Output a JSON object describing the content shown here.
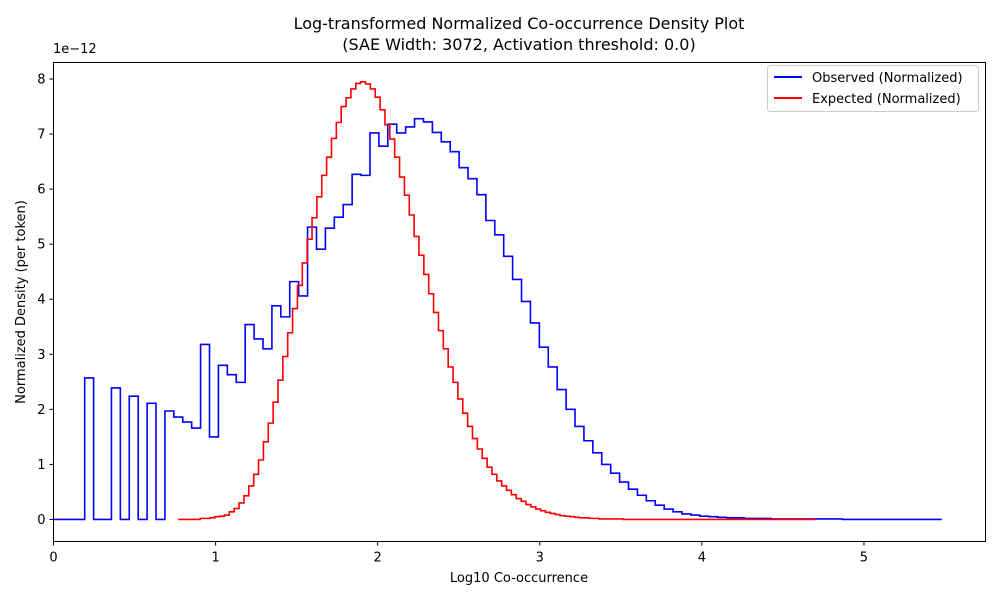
{
  "chart_data": {
    "type": "line",
    "title": "Log-transformed Normalized Co-occurrence Density Plot",
    "subtitle": "(SAE Width: 3072, Activation threshold: 0.0)",
    "xlabel": "Log10 Co-occurrence",
    "ylabel": "Normalized Density (per token)",
    "y_multiplier": "1e−12",
    "xlim": [
      0,
      5.75
    ],
    "ylim": [
      -0.4,
      8.3
    ],
    "x_ticks": [
      0,
      1,
      2,
      3,
      4,
      5
    ],
    "x_tick_labels": [
      "0",
      "1",
      "2",
      "3",
      "4",
      "5"
    ],
    "y_ticks": [
      0,
      1,
      2,
      3,
      4,
      5,
      6,
      7,
      8
    ],
    "y_tick_labels": [
      "0",
      "1",
      "2",
      "3",
      "4",
      "5",
      "6",
      "7",
      "8"
    ],
    "grid": false,
    "legend_position": "top-right",
    "series": [
      {
        "name": "Observed (Normalized)",
        "color": "#0000ff",
        "step": "mid",
        "x": [
          0.0,
          0.055,
          0.11,
          0.165,
          0.22,
          0.275,
          0.33,
          0.385,
          0.44,
          0.495,
          0.55,
          0.605,
          0.66,
          0.715,
          0.77,
          0.825,
          0.88,
          0.935,
          0.99,
          1.045,
          1.1,
          1.155,
          1.21,
          1.265,
          1.32,
          1.375,
          1.43,
          1.485,
          1.54,
          1.595,
          1.65,
          1.705,
          1.76,
          1.815,
          1.87,
          1.925,
          1.98,
          2.035,
          2.09,
          2.145,
          2.2,
          2.255,
          2.31,
          2.365,
          2.42,
          2.475,
          2.53,
          2.585,
          2.64,
          2.695,
          2.75,
          2.805,
          2.86,
          2.915,
          2.97,
          3.025,
          3.08,
          3.135,
          3.19,
          3.245,
          3.3,
          3.355,
          3.41,
          3.465,
          3.52,
          3.575,
          3.63,
          3.685,
          3.74,
          3.795,
          3.85,
          3.905,
          3.96,
          4.015,
          4.07,
          4.125,
          4.18,
          4.235,
          4.29,
          4.345,
          4.4,
          4.455,
          4.51,
          4.565,
          4.62,
          4.675,
          4.73,
          4.785,
          4.84,
          4.895,
          4.95,
          5.005,
          5.06,
          5.115,
          5.17,
          5.225,
          5.28,
          5.335,
          5.39,
          5.445,
          5.48
        ],
        "values": [
          0,
          0,
          0,
          0,
          2.57,
          0,
          0,
          2.39,
          0,
          2.24,
          0,
          2.11,
          0,
          1.97,
          1.86,
          1.77,
          1.66,
          3.18,
          1.5,
          2.8,
          2.63,
          2.49,
          3.54,
          3.28,
          3.1,
          3.88,
          3.68,
          4.32,
          4.06,
          5.31,
          4.91,
          5.29,
          5.49,
          5.72,
          6.27,
          6.25,
          7.02,
          6.78,
          7.18,
          7.02,
          7.13,
          7.28,
          7.22,
          7.03,
          6.86,
          6.68,
          6.39,
          6.19,
          5.9,
          5.43,
          5.17,
          4.78,
          4.36,
          3.96,
          3.57,
          3.13,
          2.77,
          2.36,
          2.0,
          1.69,
          1.43,
          1.21,
          1.0,
          0.84,
          0.68,
          0.55,
          0.44,
          0.34,
          0.26,
          0.19,
          0.14,
          0.1,
          0.08,
          0.06,
          0.05,
          0.04,
          0.03,
          0.03,
          0.02,
          0.02,
          0.02,
          0.01,
          0.01,
          0.01,
          0.01,
          0.01,
          0.01,
          0.01,
          0.01,
          0.0,
          0.0,
          0.0,
          0.0,
          0.0,
          0.0,
          0.0,
          0.0,
          0.0,
          0.0,
          0.0,
          0.0
        ]
      },
      {
        "name": "Expected (Normalized)",
        "color": "#ff0000",
        "step": "mid",
        "x": [
          0.77,
          0.8,
          0.83,
          0.86,
          0.89,
          0.92,
          0.95,
          0.98,
          1.01,
          1.04,
          1.07,
          1.1,
          1.13,
          1.16,
          1.19,
          1.22,
          1.25,
          1.28,
          1.31,
          1.34,
          1.37,
          1.4,
          1.43,
          1.46,
          1.49,
          1.52,
          1.55,
          1.58,
          1.61,
          1.64,
          1.67,
          1.7,
          1.73,
          1.76,
          1.79,
          1.82,
          1.85,
          1.88,
          1.91,
          1.94,
          1.97,
          2.0,
          2.03,
          2.06,
          2.09,
          2.12,
          2.15,
          2.18,
          2.21,
          2.24,
          2.27,
          2.3,
          2.33,
          2.36,
          2.39,
          2.42,
          2.45,
          2.48,
          2.51,
          2.54,
          2.57,
          2.6,
          2.63,
          2.66,
          2.69,
          2.72,
          2.75,
          2.78,
          2.81,
          2.84,
          2.87,
          2.9,
          2.93,
          2.96,
          2.99,
          3.02,
          3.05,
          3.08,
          3.11,
          3.14,
          3.17,
          3.2,
          3.23,
          3.26,
          3.29,
          3.32,
          3.35,
          3.38,
          3.41,
          3.44,
          3.47,
          3.5,
          3.53,
          3.56,
          3.59,
          3.62,
          3.65,
          3.68,
          3.71,
          3.74,
          3.77,
          3.8,
          3.83,
          3.86,
          3.89,
          3.92,
          3.95,
          3.98,
          4.01,
          4.04,
          4.07,
          4.1,
          4.13,
          4.16,
          4.19,
          4.22,
          4.25,
          4.28,
          4.31,
          4.34,
          4.37,
          4.4,
          4.43,
          4.46,
          4.49,
          4.52,
          4.55,
          4.58,
          4.61,
          4.64,
          4.67,
          4.7
        ],
        "values": [
          0.0,
          0.0,
          0.0,
          0.0,
          0.0,
          0.02,
          0.02,
          0.03,
          0.05,
          0.06,
          0.08,
          0.14,
          0.2,
          0.3,
          0.43,
          0.61,
          0.82,
          1.08,
          1.41,
          1.75,
          2.13,
          2.53,
          2.96,
          3.39,
          3.83,
          4.25,
          4.66,
          5.09,
          5.48,
          5.86,
          6.25,
          6.58,
          6.92,
          7.21,
          7.5,
          7.66,
          7.82,
          7.92,
          7.95,
          7.91,
          7.82,
          7.67,
          7.44,
          7.17,
          6.91,
          6.58,
          6.22,
          5.89,
          5.53,
          5.14,
          4.8,
          4.45,
          4.1,
          3.76,
          3.43,
          3.1,
          2.77,
          2.49,
          2.19,
          1.93,
          1.69,
          1.47,
          1.28,
          1.11,
          0.95,
          0.82,
          0.7,
          0.61,
          0.53,
          0.45,
          0.38,
          0.33,
          0.27,
          0.23,
          0.19,
          0.16,
          0.13,
          0.11,
          0.09,
          0.07,
          0.06,
          0.05,
          0.04,
          0.03,
          0.03,
          0.02,
          0.02,
          0.01,
          0.01,
          0.01,
          0.01,
          0.01,
          0.0,
          0.0,
          0.0,
          0.0,
          0.0,
          0.0,
          0.0,
          0.0,
          0.0,
          0.0,
          0.0,
          0.0,
          0.0,
          0.0,
          0.0,
          0.0,
          0.0,
          0.0,
          0.0,
          0.0,
          0.0,
          0.0,
          0.0,
          0.0,
          0.0,
          0.0,
          0.0,
          0.0,
          0.0,
          0.0,
          0.0,
          0.0,
          0.0,
          0.0,
          0.0,
          0.0,
          0.0,
          0.0,
          0.0,
          0.0
        ]
      }
    ]
  }
}
